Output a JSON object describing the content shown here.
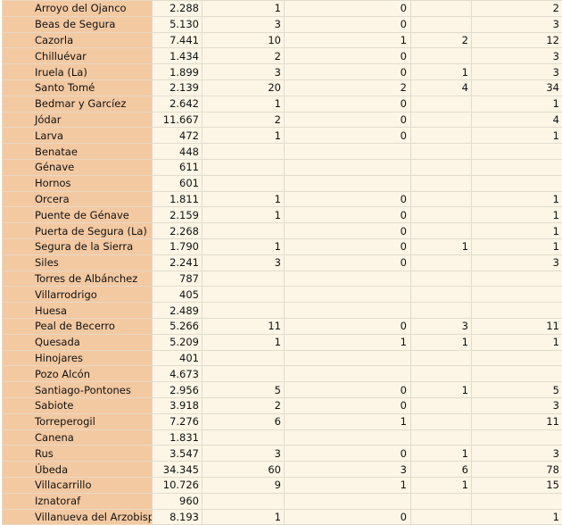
{
  "table": {
    "rows": [
      [
        "Arroyo del Ojanco",
        "2.288",
        "1",
        "0",
        null,
        "2"
      ],
      [
        "Beas de Segura",
        "5.130",
        "3",
        "0",
        null,
        "3"
      ],
      [
        "Cazorla",
        "7.441",
        "10",
        "1",
        "2",
        "12"
      ],
      [
        "Chilluévar",
        "1.434",
        "2",
        "0",
        null,
        "3"
      ],
      [
        "Iruela (La)",
        "1.899",
        "3",
        "0",
        "1",
        "3"
      ],
      [
        "Santo Tomé",
        "2.139",
        "20",
        "2",
        "4",
        "34"
      ],
      [
        "Bedmar y Garcíez",
        "2.642",
        "1",
        "0",
        null,
        "1"
      ],
      [
        "Jódar",
        "11.667",
        "2",
        "0",
        null,
        "4"
      ],
      [
        "Larva",
        "472",
        "1",
        "0",
        null,
        "1"
      ],
      [
        "Benatae",
        "448",
        null,
        null,
        null,
        null
      ],
      [
        "Génave",
        "611",
        null,
        null,
        null,
        null
      ],
      [
        "Hornos",
        "601",
        null,
        null,
        null,
        null
      ],
      [
        "Orcera",
        "1.811",
        "1",
        "0",
        null,
        "1"
      ],
      [
        "Puente de Génave",
        "2.159",
        "1",
        "0",
        null,
        "1"
      ],
      [
        "Puerta de Segura (La)",
        "2.268",
        null,
        "0",
        null,
        "1"
      ],
      [
        "Segura de la Sierra",
        "1.790",
        "1",
        "0",
        "1",
        "1"
      ],
      [
        "Siles",
        "2.241",
        "3",
        "0",
        null,
        "3"
      ],
      [
        "Torres de Albánchez",
        "787",
        null,
        null,
        null,
        null
      ],
      [
        "Villarrodrigo",
        "405",
        null,
        null,
        null,
        null
      ],
      [
        "Huesa",
        "2.489",
        null,
        null,
        null,
        null
      ],
      [
        "Peal de Becerro",
        "5.266",
        "11",
        "0",
        "3",
        "11"
      ],
      [
        "Quesada",
        "5.209",
        "1",
        "1",
        "1",
        "1"
      ],
      [
        "Hinojares",
        "401",
        null,
        null,
        null,
        null
      ],
      [
        "Pozo Alcón",
        "4.673",
        null,
        null,
        null,
        null
      ],
      [
        "Santiago-Pontones",
        "2.956",
        "5",
        "0",
        "1",
        "5"
      ],
      [
        "Sabiote",
        "3.918",
        "2",
        "0",
        null,
        "3"
      ],
      [
        "Torreperogil",
        "7.276",
        "6",
        "1",
        null,
        "11"
      ],
      [
        "Canena",
        "1.831",
        null,
        null,
        null,
        null
      ],
      [
        "Rus",
        "3.547",
        "3",
        "0",
        "1",
        "3"
      ],
      [
        "Úbeda",
        "34.345",
        "60",
        "3",
        "6",
        "78"
      ],
      [
        "Villacarrillo",
        "10.726",
        "9",
        "1",
        "1",
        "15"
      ],
      [
        "Iznatoraf",
        "960",
        null,
        null,
        null,
        null
      ],
      [
        "Villanueva del Arzobispo",
        "8.193",
        "1",
        "0",
        null,
        "1"
      ]
    ]
  }
}
